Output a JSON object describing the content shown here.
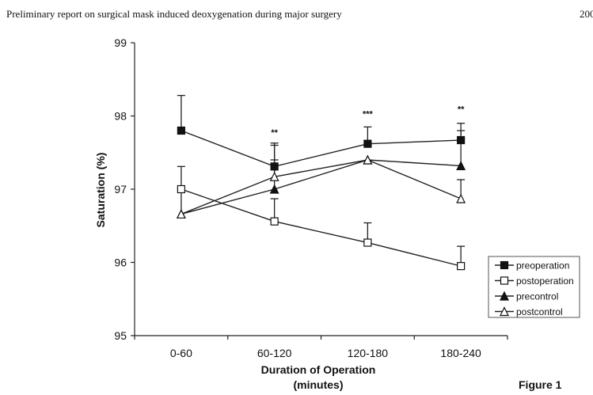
{
  "header": {
    "running_title": "Preliminary report on surgical mask induced deoxygenation during major surgery",
    "page_number": "200"
  },
  "figure_label": "Figure 1",
  "chart_data": {
    "type": "line",
    "title": "",
    "xlabel": "Duration of Operation",
    "xlabel_line2": "(minutes)",
    "ylabel": "Saturation (%)",
    "ylim": [
      95,
      99
    ],
    "yticks": [
      95,
      96,
      97,
      98,
      99
    ],
    "categories": [
      "0-60",
      "60-120",
      "120-180",
      "180-240"
    ],
    "grid": false,
    "legend_position": "right",
    "series": [
      {
        "name": "preoperation",
        "marker": "filled-square",
        "values": [
          97.8,
          97.31,
          97.62,
          97.67
        ],
        "error_upper": [
          98.28,
          97.63,
          97.85,
          97.9
        ]
      },
      {
        "name": "postoperation",
        "marker": "open-square",
        "values": [
          97.0,
          96.56,
          96.27,
          95.95
        ],
        "error_upper": [
          97.31,
          96.87,
          96.54,
          96.22
        ]
      },
      {
        "name": "precontrol",
        "marker": "filled-triangle",
        "values": [
          96.66,
          97.0,
          97.4,
          97.32
        ],
        "error_upper": [
          null,
          97.6,
          null,
          97.8
        ]
      },
      {
        "name": "postcontrol",
        "marker": "open-triangle",
        "values": [
          96.66,
          97.17,
          97.4,
          96.87
        ],
        "error_upper": [
          97.0,
          97.4,
          null,
          97.13
        ]
      }
    ],
    "annotations": [
      {
        "category": "60-120",
        "text": "**",
        "y": 97.78
      },
      {
        "category": "120-180",
        "text": "***",
        "y": 98.03
      },
      {
        "category": "180-240",
        "text": "**",
        "y": 98.1
      }
    ]
  }
}
